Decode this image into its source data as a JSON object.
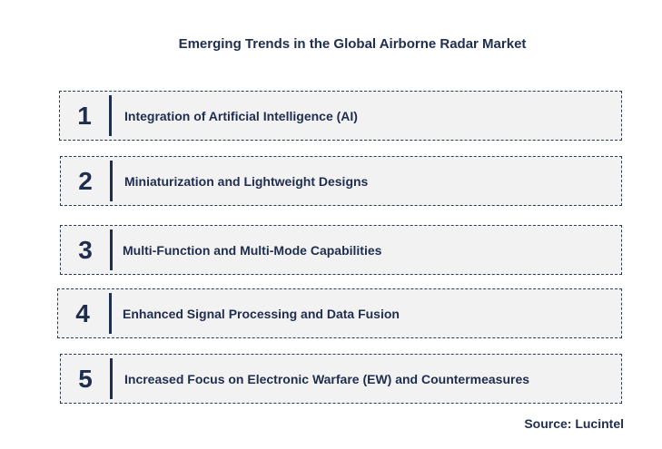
{
  "title": "Emerging Trends in the Global Airborne Radar Market",
  "trends": [
    {
      "number": "1",
      "label": "Integration of Artificial  Intelligence (AI)"
    },
    {
      "number": "2",
      "label": "Miniaturization and Lightweight Designs"
    },
    {
      "number": "3",
      "label": "Multi-Function and Multi-Mode Capabilities"
    },
    {
      "number": "4",
      "label": "Enhanced Signal Processing and Data Fusion"
    },
    {
      "number": "5",
      "label": "Increased Focus on Electronic Warfare (EW) and Countermeasures"
    }
  ],
  "source": "Source: Lucintel"
}
